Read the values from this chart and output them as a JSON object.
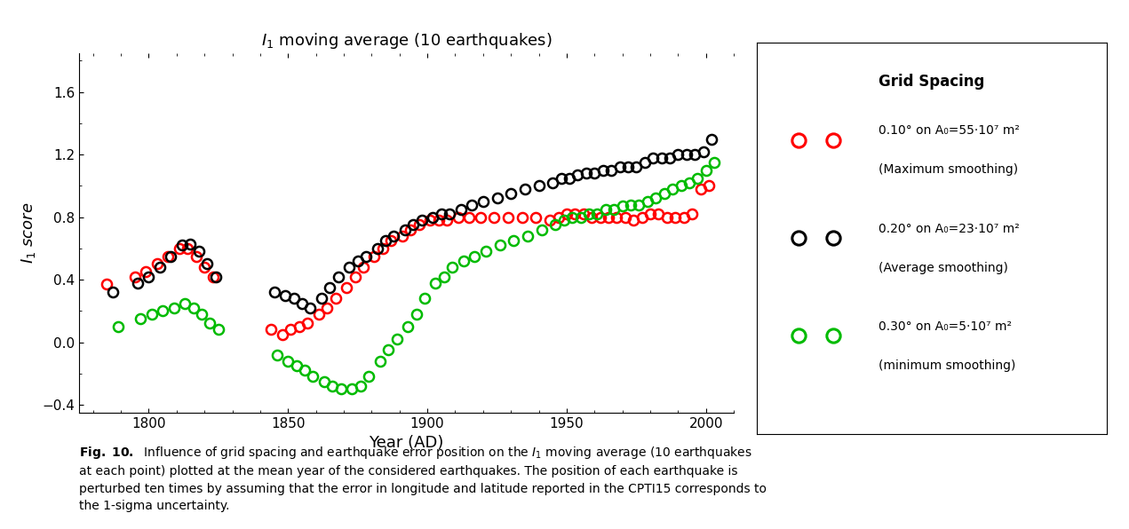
{
  "title": "$I_1$ moving average (10 earthquakes)",
  "xlabel": "Year (AD)",
  "ylabel": "$I_1$ score",
  "xlim": [
    1775,
    2010
  ],
  "ylim": [
    -0.45,
    1.85
  ],
  "yticks": [
    -0.4,
    0.0,
    0.4,
    0.8,
    1.2,
    1.6
  ],
  "xticks": [
    1800,
    1850,
    1900,
    1950,
    2000
  ],
  "colors": {
    "red": "#ff0000",
    "black": "#000000",
    "green": "#00bb00"
  },
  "legend_title": "Grid Spacing",
  "caption": "Fig. 10. Influence of grid spacing and earthquake error position on the $I_1$ moving average (10 earthquakes\nat each point) plotted at the mean year of the considered earthquakes. The position of each earthquake is\nperturbed ten times by assuming that the error in longitude and latitude reported in the CPTI15 corresponds to\nthe 1-sigma uncertainty.",
  "base_x": [
    1787,
    1796,
    1800,
    1804,
    1808,
    1812,
    1815,
    1818,
    1821,
    1824,
    1845,
    1849,
    1852,
    1855,
    1858,
    1862,
    1865,
    1868,
    1872,
    1875,
    1878,
    1882,
    1885,
    1888,
    1892,
    1895,
    1898,
    1902,
    1905,
    1908,
    1912,
    1916,
    1920,
    1925,
    1930,
    1935,
    1940,
    1945,
    1948,
    1951,
    1954,
    1957,
    1960,
    1963,
    1966,
    1969,
    1972,
    1975,
    1978,
    1981,
    1984,
    1987,
    1990,
    1993,
    1996,
    1999,
    2002
  ],
  "red_y": [
    0.37,
    0.42,
    0.45,
    0.5,
    0.55,
    0.6,
    0.6,
    0.55,
    0.48,
    0.42,
    0.08,
    0.05,
    0.08,
    0.1,
    0.12,
    0.18,
    0.22,
    0.28,
    0.35,
    0.42,
    0.48,
    0.55,
    0.6,
    0.65,
    0.68,
    0.72,
    0.75,
    0.78,
    0.78,
    0.78,
    0.8,
    0.8,
    0.8,
    0.8,
    0.8,
    0.8,
    0.8,
    0.78,
    0.8,
    0.82,
    0.82,
    0.82,
    0.8,
    0.8,
    0.8,
    0.8,
    0.8,
    0.78,
    0.8,
    0.82,
    0.82,
    0.8,
    0.8,
    0.8,
    0.82,
    0.98,
    1.0
  ],
  "black_y": [
    0.32,
    0.38,
    0.42,
    0.48,
    0.55,
    0.62,
    0.63,
    0.58,
    0.5,
    0.42,
    0.32,
    0.3,
    0.28,
    0.25,
    0.22,
    0.28,
    0.35,
    0.42,
    0.48,
    0.52,
    0.55,
    0.6,
    0.65,
    0.68,
    0.72,
    0.75,
    0.78,
    0.8,
    0.82,
    0.82,
    0.85,
    0.88,
    0.9,
    0.92,
    0.95,
    0.98,
    1.0,
    1.02,
    1.05,
    1.05,
    1.07,
    1.08,
    1.08,
    1.1,
    1.1,
    1.12,
    1.12,
    1.12,
    1.15,
    1.18,
    1.18,
    1.18,
    1.2,
    1.2,
    1.2,
    1.22,
    1.3
  ],
  "green_y": [
    0.1,
    0.15,
    0.18,
    0.2,
    0.22,
    0.25,
    0.22,
    0.18,
    0.12,
    0.08,
    -0.08,
    -0.12,
    -0.15,
    -0.18,
    -0.22,
    -0.25,
    -0.28,
    -0.3,
    -0.3,
    -0.28,
    -0.22,
    -0.12,
    -0.05,
    0.02,
    0.1,
    0.18,
    0.28,
    0.38,
    0.42,
    0.48,
    0.52,
    0.55,
    0.58,
    0.62,
    0.65,
    0.68,
    0.72,
    0.75,
    0.78,
    0.8,
    0.8,
    0.82,
    0.82,
    0.85,
    0.85,
    0.87,
    0.88,
    0.88,
    0.9,
    0.92,
    0.95,
    0.98,
    1.0,
    1.02,
    1.05,
    1.1,
    1.15
  ],
  "jitter_red": [
    -2,
    -1,
    -1,
    -1,
    -1,
    -1,
    -1,
    -1,
    -1,
    -1,
    -1,
    -1,
    -1,
    -1,
    -1,
    -1,
    -1,
    -1,
    -1,
    -1,
    -1,
    -1,
    -1,
    -1,
    -1,
    -1,
    -1,
    -1,
    -1,
    -1,
    -1,
    -1,
    -1,
    -1,
    -1,
    -1,
    -1,
    -1,
    -1,
    -1,
    -1,
    -1,
    -1,
    -1,
    -1,
    -1,
    -1,
    -1,
    -1,
    -1,
    -1,
    -1,
    -1,
    -1,
    -1,
    -1,
    -1
  ],
  "jitter_black": [
    0,
    0,
    0,
    0,
    0,
    0,
    0,
    0,
    0,
    0,
    0,
    0,
    0,
    0,
    0,
    0,
    0,
    0,
    0,
    0,
    0,
    0,
    0,
    0,
    0,
    0,
    0,
    0,
    0,
    0,
    0,
    0,
    0,
    0,
    0,
    0,
    0,
    0,
    0,
    0,
    0,
    0,
    0,
    0,
    0,
    0,
    0,
    0,
    0,
    0,
    0,
    0,
    0,
    0,
    0,
    0,
    0
  ],
  "jitter_green": [
    2,
    1,
    1,
    1,
    1,
    1,
    1,
    1,
    1,
    1,
    1,
    1,
    1,
    1,
    1,
    1,
    1,
    1,
    1,
    1,
    1,
    1,
    1,
    1,
    1,
    1,
    1,
    1,
    1,
    1,
    1,
    1,
    1,
    1,
    1,
    1,
    1,
    1,
    1,
    1,
    1,
    1,
    1,
    1,
    1,
    1,
    1,
    1,
    1,
    1,
    1,
    1,
    1,
    1,
    1,
    1,
    1
  ]
}
